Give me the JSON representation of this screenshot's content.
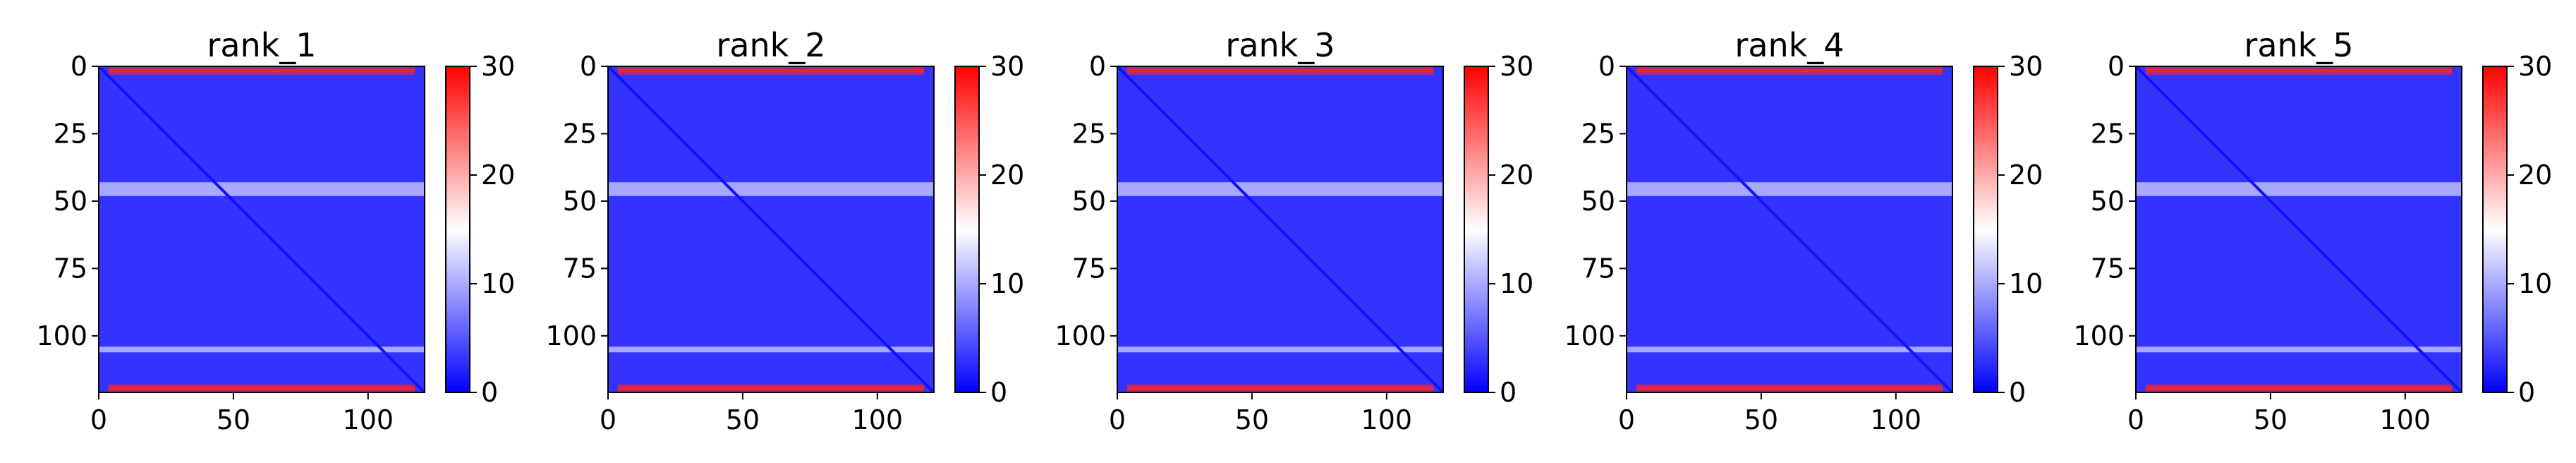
{
  "chart_data": [
    {
      "type": "heatmap",
      "title": "rank_1",
      "x_ticks": [
        0,
        50,
        100
      ],
      "y_ticks": [
        0,
        25,
        50,
        75,
        100
      ],
      "xlim": [
        0,
        121
      ],
      "ylim": [
        121,
        0
      ],
      "colorbar": {
        "ticks": [
          0,
          10,
          20,
          30
        ],
        "range": [
          0,
          30
        ],
        "colormap": "bwr"
      },
      "pattern": {
        "matrix_size": 121,
        "diagonal_value": 1,
        "background_value": 3,
        "high_bands_rows": [
          0,
          1,
          2,
          118,
          119,
          120
        ],
        "high_band_value": 28,
        "light_band_rows": [
          43,
          44,
          45,
          46,
          47,
          104,
          105
        ],
        "light_band_value": 11
      }
    },
    {
      "type": "heatmap",
      "title": "rank_2",
      "x_ticks": [
        0,
        50,
        100
      ],
      "y_ticks": [
        0,
        25,
        50,
        75,
        100
      ],
      "xlim": [
        0,
        121
      ],
      "ylim": [
        121,
        0
      ],
      "colorbar": {
        "ticks": [
          0,
          10,
          20,
          30
        ],
        "range": [
          0,
          30
        ],
        "colormap": "bwr"
      },
      "pattern": {
        "matrix_size": 121,
        "diagonal_value": 1,
        "background_value": 3,
        "high_bands_rows": [
          0,
          1,
          2,
          118,
          119,
          120
        ],
        "high_band_value": 28,
        "light_band_rows": [
          43,
          44,
          45,
          46,
          47,
          104,
          105
        ],
        "light_band_value": 11
      }
    },
    {
      "type": "heatmap",
      "title": "rank_3",
      "x_ticks": [
        0,
        50,
        100
      ],
      "y_ticks": [
        0,
        25,
        50,
        75,
        100
      ],
      "xlim": [
        0,
        121
      ],
      "ylim": [
        121,
        0
      ],
      "colorbar": {
        "ticks": [
          0,
          10,
          20,
          30
        ],
        "range": [
          0,
          30
        ],
        "colormap": "bwr"
      },
      "pattern": {
        "matrix_size": 121,
        "diagonal_value": 1,
        "background_value": 3,
        "high_bands_rows": [
          0,
          1,
          2,
          118,
          119,
          120
        ],
        "high_band_value": 28,
        "light_band_rows": [
          43,
          44,
          45,
          46,
          47,
          104,
          105
        ],
        "light_band_value": 11
      }
    },
    {
      "type": "heatmap",
      "title": "rank_4",
      "x_ticks": [
        0,
        50,
        100
      ],
      "y_ticks": [
        0,
        25,
        50,
        75,
        100
      ],
      "xlim": [
        0,
        121
      ],
      "ylim": [
        121,
        0
      ],
      "colorbar": {
        "ticks": [
          0,
          10,
          20,
          30
        ],
        "range": [
          0,
          30
        ],
        "colormap": "bwr"
      },
      "pattern": {
        "matrix_size": 121,
        "diagonal_value": 1,
        "background_value": 3,
        "high_bands_rows": [
          0,
          1,
          2,
          118,
          119,
          120
        ],
        "high_band_value": 28,
        "light_band_rows": [
          43,
          44,
          45,
          46,
          47,
          104,
          105
        ],
        "light_band_value": 11
      }
    },
    {
      "type": "heatmap",
      "title": "rank_5",
      "x_ticks": [
        0,
        50,
        100
      ],
      "y_ticks": [
        0,
        25,
        50,
        75,
        100
      ],
      "xlim": [
        0,
        121
      ],
      "ylim": [
        121,
        0
      ],
      "colorbar": {
        "ticks": [
          0,
          10,
          20,
          30
        ],
        "range": [
          0,
          30
        ],
        "colormap": "bwr"
      },
      "pattern": {
        "matrix_size": 121,
        "diagonal_value": 1,
        "background_value": 3,
        "high_bands_rows": [
          0,
          1,
          2,
          118,
          119,
          120
        ],
        "high_band_value": 28,
        "light_band_rows": [
          43,
          44,
          45,
          46,
          47,
          104,
          105
        ],
        "light_band_value": 11
      }
    }
  ]
}
